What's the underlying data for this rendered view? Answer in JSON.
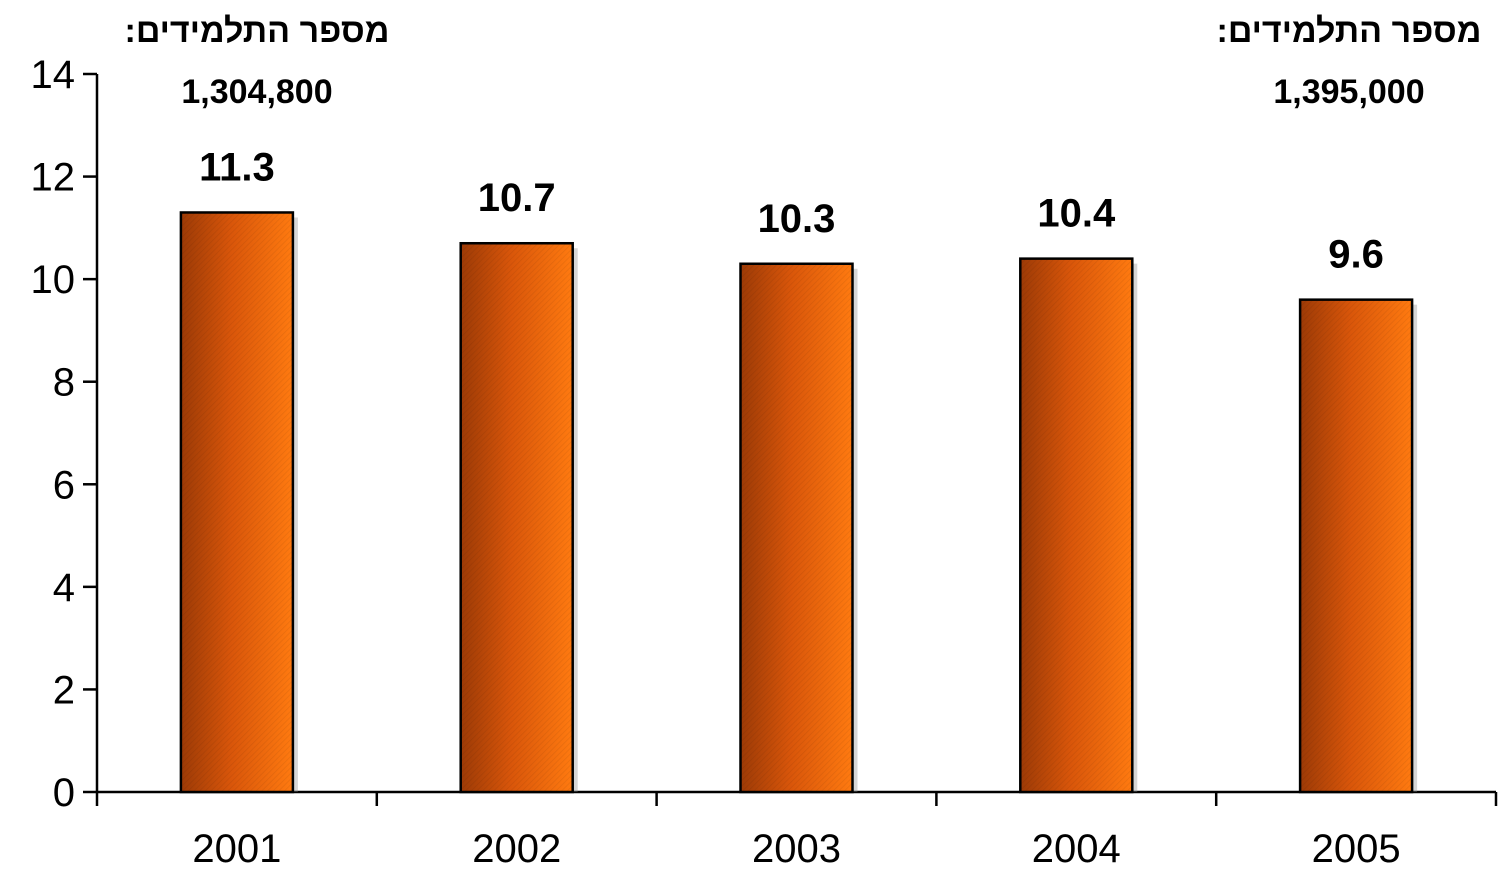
{
  "chart_data": {
    "type": "bar",
    "categories": [
      "2001",
      "2002",
      "2003",
      "2004",
      "2005"
    ],
    "values": [
      11.3,
      10.7,
      10.3,
      10.4,
      9.6
    ],
    "data_labels": [
      "11.3",
      "10.7",
      "10.3",
      "10.4",
      "9.6"
    ],
    "title": "",
    "xlabel": "",
    "ylabel": "",
    "ylim": [
      0,
      14
    ],
    "yticks": [
      0,
      2,
      4,
      6,
      8,
      10,
      12,
      14
    ],
    "ytick_labels": [
      "0",
      "2",
      "4",
      "6",
      "8",
      "10",
      "12",
      "14"
    ],
    "grid": false,
    "legend": "none",
    "bar_color": "#F26A0A",
    "bar_color_dark": "#B4430A",
    "annotations": [
      {
        "label": "מספר התלמידים:",
        "value": "1,304,800",
        "category": "2001"
      },
      {
        "label": "מספר התלמידים:",
        "value": "1,395,000",
        "category": "2005"
      }
    ]
  }
}
